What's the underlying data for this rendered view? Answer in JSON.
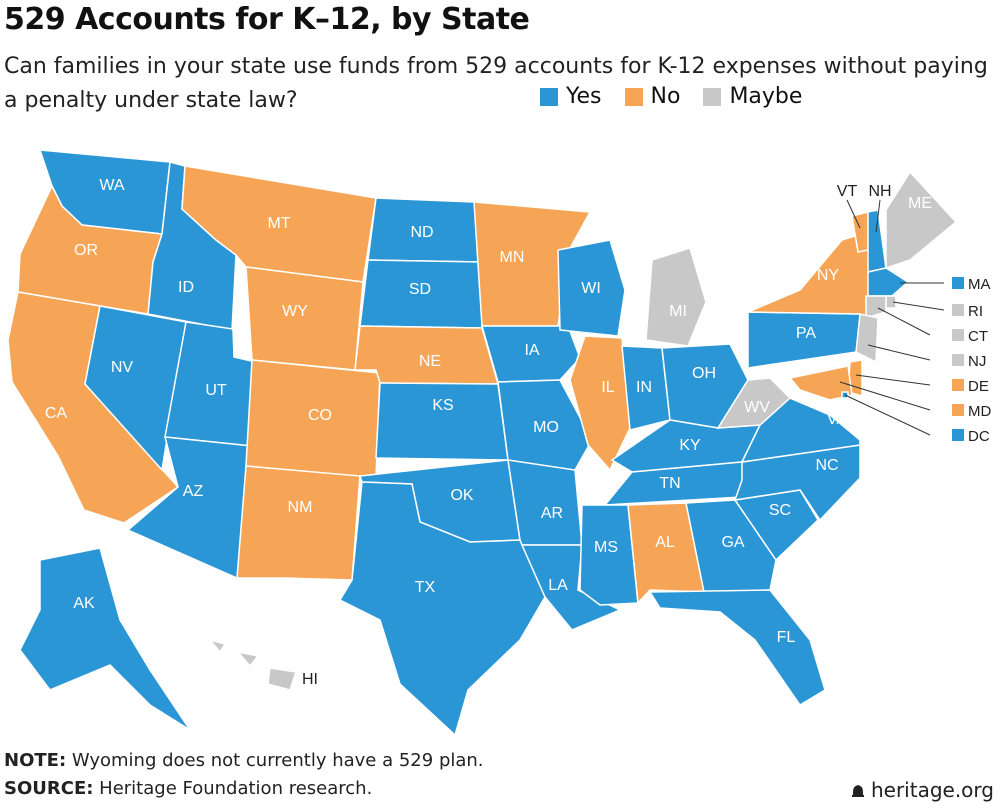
{
  "title": "529 Accounts for K–12, by State",
  "subtitle": "Can families in your state use funds from 529 accounts for K-12 expenses without paying a penalty under state law?",
  "legend": [
    {
      "label": "Yes",
      "color": "#2b96d6"
    },
    {
      "label": "No",
      "color": "#f5a555"
    },
    {
      "label": "Maybe",
      "color": "#c8c8c8"
    }
  ],
  "colors": {
    "yes": "#2b96d6",
    "no": "#f5a555",
    "maybe": "#c8c8c8"
  },
  "states": [
    {
      "code": "WA",
      "status": "yes"
    },
    {
      "code": "OR",
      "status": "no"
    },
    {
      "code": "CA",
      "status": "no"
    },
    {
      "code": "ID",
      "status": "yes"
    },
    {
      "code": "NV",
      "status": "yes"
    },
    {
      "code": "UT",
      "status": "yes"
    },
    {
      "code": "AZ",
      "status": "yes"
    },
    {
      "code": "MT",
      "status": "no"
    },
    {
      "code": "WY",
      "status": "no"
    },
    {
      "code": "CO",
      "status": "no"
    },
    {
      "code": "NM",
      "status": "no"
    },
    {
      "code": "ND",
      "status": "yes"
    },
    {
      "code": "SD",
      "status": "yes"
    },
    {
      "code": "NE",
      "status": "no"
    },
    {
      "code": "KS",
      "status": "yes"
    },
    {
      "code": "OK",
      "status": "yes"
    },
    {
      "code": "TX",
      "status": "yes"
    },
    {
      "code": "MN",
      "status": "no"
    },
    {
      "code": "IA",
      "status": "yes"
    },
    {
      "code": "MO",
      "status": "yes"
    },
    {
      "code": "AR",
      "status": "yes"
    },
    {
      "code": "LA",
      "status": "yes"
    },
    {
      "code": "WI",
      "status": "yes"
    },
    {
      "code": "IL",
      "status": "no"
    },
    {
      "code": "MI",
      "status": "maybe"
    },
    {
      "code": "IN",
      "status": "yes"
    },
    {
      "code": "OH",
      "status": "yes"
    },
    {
      "code": "KY",
      "status": "yes"
    },
    {
      "code": "TN",
      "status": "yes"
    },
    {
      "code": "MS",
      "status": "yes"
    },
    {
      "code": "AL",
      "status": "no"
    },
    {
      "code": "GA",
      "status": "yes"
    },
    {
      "code": "FL",
      "status": "yes"
    },
    {
      "code": "SC",
      "status": "yes"
    },
    {
      "code": "NC",
      "status": "yes"
    },
    {
      "code": "VA",
      "status": "yes"
    },
    {
      "code": "WV",
      "status": "maybe"
    },
    {
      "code": "PA",
      "status": "yes"
    },
    {
      "code": "NY",
      "status": "no"
    },
    {
      "code": "VT",
      "status": "no"
    },
    {
      "code": "NH",
      "status": "yes"
    },
    {
      "code": "ME",
      "status": "maybe"
    },
    {
      "code": "MA",
      "status": "yes"
    },
    {
      "code": "RI",
      "status": "maybe"
    },
    {
      "code": "CT",
      "status": "maybe"
    },
    {
      "code": "NJ",
      "status": "maybe"
    },
    {
      "code": "DE",
      "status": "no"
    },
    {
      "code": "MD",
      "status": "no"
    },
    {
      "code": "DC",
      "status": "yes"
    },
    {
      "code": "AK",
      "status": "yes"
    },
    {
      "code": "HI",
      "status": "maybe"
    }
  ],
  "note": {
    "label": "NOTE:",
    "text": " Wyoming does not currently have a 529 plan."
  },
  "source": {
    "label": "SOURCE:",
    "text": " Heritage Foundation research."
  },
  "brand": "heritage.org"
}
